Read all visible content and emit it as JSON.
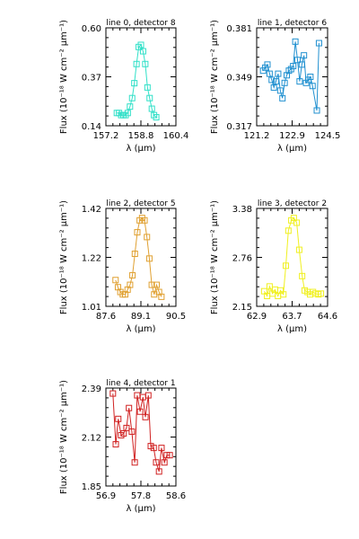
{
  "chart_data": [
    {
      "type": "line",
      "title": "line 0, detector 8",
      "color": "#30e0c8",
      "xlim": [
        157.2,
        160.4
      ],
      "ylim": [
        0.14,
        0.6
      ],
      "xticks": [
        "157.2",
        "158.8",
        "160.4"
      ],
      "yticks": [
        "0.14",
        "0.37",
        "0.60"
      ],
      "x": [
        157.7,
        157.8,
        157.9,
        158.0,
        158.1,
        158.2,
        158.3,
        158.4,
        158.5,
        158.6,
        158.7,
        158.8,
        158.9,
        159.0,
        159.1,
        159.2,
        159.3,
        159.4,
        159.5
      ],
      "y": [
        0.2,
        0.2,
        0.19,
        0.19,
        0.19,
        0.2,
        0.23,
        0.27,
        0.34,
        0.43,
        0.51,
        0.52,
        0.49,
        0.43,
        0.32,
        0.27,
        0.22,
        0.19,
        0.18
      ],
      "xlabel": "λ (μm)",
      "ylabel": "Flux (10⁻¹⁸ W cm⁻² μm⁻¹)"
    },
    {
      "type": "line",
      "title": "line 1, detector 6",
      "color": "#2090d0",
      "xlim": [
        121.2,
        124.5
      ],
      "ylim": [
        0.317,
        0.381
      ],
      "xticks": [
        "121.2",
        "122.9",
        "124.5"
      ],
      "yticks": [
        "0.317",
        "0.349",
        "0.381"
      ],
      "x": [
        121.5,
        121.6,
        121.7,
        121.8,
        121.9,
        122.0,
        122.1,
        122.2,
        122.3,
        122.4,
        122.5,
        122.6,
        122.7,
        122.8,
        122.9,
        123.0,
        123.1,
        123.2,
        123.3,
        123.4,
        123.5,
        123.6,
        123.7,
        123.8,
        124.0,
        124.1
      ],
      "y": [
        0.353,
        0.355,
        0.357,
        0.351,
        0.347,
        0.342,
        0.346,
        0.351,
        0.34,
        0.335,
        0.345,
        0.35,
        0.353,
        0.354,
        0.356,
        0.372,
        0.36,
        0.346,
        0.357,
        0.363,
        0.345,
        0.347,
        0.349,
        0.343,
        0.327,
        0.371
      ],
      "xlabel": "λ (μm)",
      "ylabel": "Flux (10⁻¹⁸ W cm⁻² μm⁻¹)"
    },
    {
      "type": "line",
      "title": "line 2, detector 5",
      "color": "#e0a030",
      "xlim": [
        87.6,
        90.5
      ],
      "ylim": [
        1.01,
        1.42
      ],
      "xticks": [
        "87.6",
        "89.1",
        "90.5"
      ],
      "yticks": [
        "1.01",
        "1.22",
        "1.42"
      ],
      "x": [
        88.0,
        88.1,
        88.2,
        88.3,
        88.4,
        88.5,
        88.6,
        88.7,
        88.8,
        88.9,
        89.0,
        89.1,
        89.2,
        89.3,
        89.4,
        89.5,
        89.6,
        89.7,
        89.8,
        89.9
      ],
      "y": [
        1.12,
        1.09,
        1.07,
        1.06,
        1.06,
        1.08,
        1.1,
        1.14,
        1.23,
        1.32,
        1.37,
        1.38,
        1.37,
        1.3,
        1.21,
        1.1,
        1.06,
        1.1,
        1.07,
        1.05
      ],
      "xlabel": "λ (μm)",
      "ylabel": "Flux (10⁻¹⁸ W cm⁻² μm⁻¹)"
    },
    {
      "type": "line",
      "title": "line 3, detector 2",
      "color": "#f0f020",
      "xlim": [
        62.9,
        64.6
      ],
      "ylim": [
        2.15,
        3.38
      ],
      "xticks": [
        "62.9",
        "63.7",
        "64.6"
      ],
      "yticks": [
        "2.15",
        "2.76",
        "3.38"
      ],
      "x": [
        63.08,
        63.15,
        63.21,
        63.28,
        63.34,
        63.41,
        63.47,
        63.54,
        63.6,
        63.66,
        63.73,
        63.79,
        63.86,
        63.92,
        63.99,
        64.05,
        64.12,
        64.18,
        64.25,
        64.31,
        64.38,
        64.44
      ],
      "y": [
        2.34,
        2.28,
        2.4,
        2.31,
        2.36,
        2.28,
        2.35,
        2.3,
        2.66,
        3.1,
        3.23,
        3.26,
        3.2,
        2.86,
        2.53,
        2.35,
        2.33,
        2.3,
        2.33,
        2.31,
        2.3,
        2.31
      ],
      "xlabel": "λ (μm)",
      "ylabel": "Flux (10⁻¹⁸ W cm⁻² μm⁻¹)"
    },
    {
      "type": "line",
      "title": "line 4, detector 1",
      "color": "#d02020",
      "xlim": [
        56.9,
        58.6
      ],
      "ylim": [
        1.85,
        2.39
      ],
      "xticks": [
        "56.9",
        "57.8",
        "58.6"
      ],
      "yticks": [
        "1.85",
        "2.12",
        "2.39"
      ],
      "x": [
        57.07,
        57.14,
        57.2,
        57.27,
        57.33,
        57.4,
        57.46,
        57.53,
        57.6,
        57.66,
        57.73,
        57.8,
        57.86,
        57.93,
        57.99,
        58.06,
        58.12,
        58.19,
        58.25,
        58.32,
        58.38,
        58.45
      ],
      "y": [
        2.36,
        2.08,
        2.22,
        2.13,
        2.14,
        2.17,
        2.28,
        2.15,
        1.98,
        2.35,
        2.26,
        2.34,
        2.23,
        2.35,
        2.07,
        2.06,
        1.98,
        1.93,
        2.06,
        1.98,
        2.02,
        2.02
      ],
      "xlabel": "λ (μm)",
      "ylabel": "Flux (10⁻¹⁸ W cm⁻² μm⁻¹)"
    }
  ]
}
